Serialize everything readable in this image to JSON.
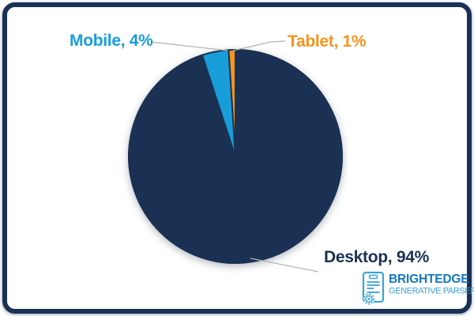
{
  "chart_data": {
    "type": "pie",
    "categories": [
      "Desktop",
      "Mobile",
      "Tablet"
    ],
    "values": [
      94,
      4,
      1
    ],
    "unit": "%",
    "slices": [
      {
        "label": "Desktop",
        "value": 94,
        "display": "Desktop, 94%",
        "color": "#1b3153"
      },
      {
        "label": "Mobile",
        "value": 4,
        "display": "Mobile, 4%",
        "color": "#189dd9"
      },
      {
        "label": "Tablet",
        "value": 1,
        "display": "Tablet, 1%",
        "color": "#f7941d"
      }
    ],
    "start_angle_deg": 0,
    "direction": "clockwise",
    "labels_outside": true,
    "legend_position": "none",
    "slice_border_color": "#1b3153",
    "leader_line_color": "#b3b3b3"
  },
  "logo": {
    "title": "BRIGHTEDGE",
    "subtitle": "GENERATIVE PARSER",
    "trademark": "™",
    "icon": "document-gear-icon",
    "title_color": "#1577bd",
    "subtitle_color": "#3ba2da"
  },
  "frame": {
    "border_color": "#1b3153",
    "background_color": "#ffffff"
  }
}
